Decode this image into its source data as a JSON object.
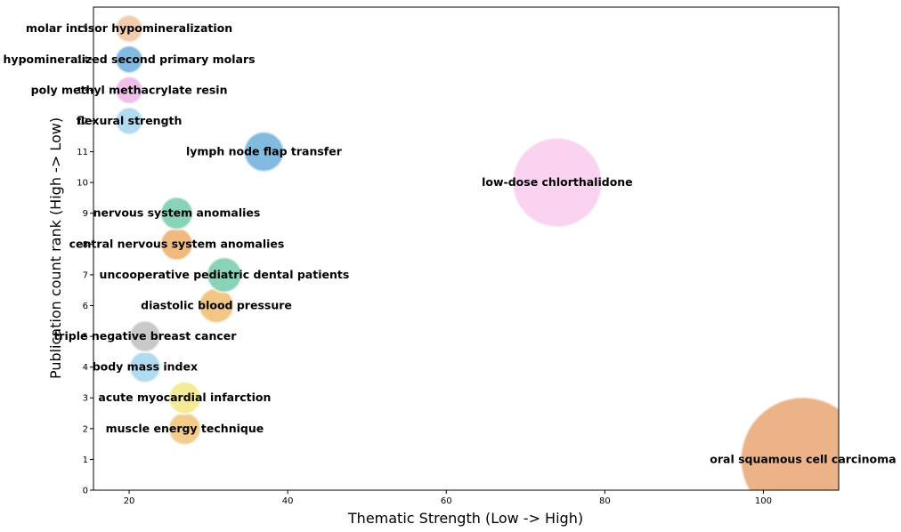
{
  "chart_data": {
    "type": "scatter",
    "xlabel": "Thematic Strength (Low -> High)",
    "ylabel": "Publication count rank (High -> Low)",
    "xlim": [
      15.5,
      109.5
    ],
    "ylim": [
      0,
      15.7
    ],
    "xticks": [
      20,
      40,
      60,
      80,
      100
    ],
    "yticks": [
      0,
      1,
      2,
      3,
      4,
      5,
      6,
      7,
      8,
      9,
      10,
      11,
      12,
      13,
      14,
      15
    ],
    "grid": false,
    "points": [
      {
        "label": "oral squamous cell carcinoma",
        "x": 105,
        "y": 1,
        "size": 100,
        "color": "#e8a06a"
      },
      {
        "label": "muscle energy technique",
        "x": 27,
        "y": 2,
        "size": 26,
        "color": "#f0c070"
      },
      {
        "label": "acute myocardial infarction",
        "x": 27,
        "y": 3,
        "size": 26,
        "color": "#f3e57a"
      },
      {
        "label": "body mass index",
        "x": 22,
        "y": 4,
        "size": 25,
        "color": "#9fd2ef"
      },
      {
        "label": "triple negative breast cancer",
        "x": 22,
        "y": 5,
        "size": 25,
        "color": "#bcbcbc"
      },
      {
        "label": "diastolic blood pressure",
        "x": 31,
        "y": 6,
        "size": 28,
        "color": "#efb866"
      },
      {
        "label": "uncooperative pediatric dental patients",
        "x": 32,
        "y": 7,
        "size": 28,
        "color": "#6bc8a5"
      },
      {
        "label": "central nervous system anomalies",
        "x": 26,
        "y": 8,
        "size": 26,
        "color": "#eba75f"
      },
      {
        "label": "nervous system anomalies",
        "x": 26,
        "y": 9,
        "size": 26,
        "color": "#6bc8a5"
      },
      {
        "label": "low-dose chlorthalidone",
        "x": 74,
        "y": 10,
        "size": 72,
        "color": "#f7c8eb"
      },
      {
        "label": "lymph node flap transfer",
        "x": 37,
        "y": 11,
        "size": 32,
        "color": "#64a9d8"
      },
      {
        "label": "flexural strength",
        "x": 20,
        "y": 12,
        "size": 22,
        "color": "#9fd2ef"
      },
      {
        "label": "poly methyl methacrylate resin",
        "x": 20,
        "y": 13,
        "size": 22,
        "color": "#ebb0e3"
      },
      {
        "label": "hypomineralized second primary molars",
        "x": 20,
        "y": 14,
        "size": 22,
        "color": "#64a9d8"
      },
      {
        "label": "molar incisor hypomineralization",
        "x": 20,
        "y": 15,
        "size": 22,
        "color": "#ecc199"
      }
    ]
  }
}
